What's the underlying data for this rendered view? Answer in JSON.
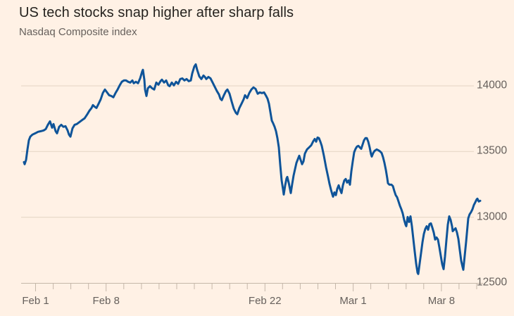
{
  "header": {
    "title": "US tech stocks snap higher after sharp falls",
    "subtitle": "Nasdaq Composite index"
  },
  "colors": {
    "background": "#FFF1E5",
    "line": "#0F5499",
    "grid": "#E3D4C4",
    "axis": "#C4B7A9",
    "text_dark": "#26231F",
    "text_muted": "#66605C"
  },
  "chart_data": {
    "type": "line",
    "title": "US tech stocks snap higher after sharp falls",
    "subtitle": "Nasdaq Composite index",
    "legend": "none",
    "grid": "horizontal gridlines only",
    "ylim": [
      12450,
      14220
    ],
    "y_ticks": [
      14000,
      13500,
      13000,
      12500
    ],
    "y_axis_side": "right",
    "x_tick_labels": [
      "Feb 1",
      "Feb 8",
      "Feb 22",
      "Mar 1",
      "Mar 8"
    ],
    "series": [
      {
        "name": "Nasdaq Composite index",
        "points": [
          [
            34,
            13420
          ],
          [
            35,
            13404
          ],
          [
            37,
            13436
          ],
          [
            39,
            13516
          ],
          [
            41,
            13586
          ],
          [
            43,
            13613
          ],
          [
            46,
            13629
          ],
          [
            50,
            13639
          ],
          [
            54,
            13650
          ],
          [
            58,
            13655
          ],
          [
            62,
            13661
          ],
          [
            65,
            13671
          ],
          [
            68,
            13704
          ],
          [
            71,
            13730
          ],
          [
            74,
            13682
          ],
          [
            76,
            13709
          ],
          [
            79,
            13655
          ],
          [
            81,
            13639
          ],
          [
            84,
            13688
          ],
          [
            87,
            13704
          ],
          [
            90,
            13688
          ],
          [
            93,
            13693
          ],
          [
            96,
            13661
          ],
          [
            98,
            13629
          ],
          [
            100,
            13613
          ],
          [
            103,
            13677
          ],
          [
            106,
            13704
          ],
          [
            109,
            13709
          ],
          [
            113,
            13725
          ],
          [
            117,
            13741
          ],
          [
            120,
            13752
          ],
          [
            124,
            13784
          ],
          [
            127,
            13811
          ],
          [
            130,
            13832
          ],
          [
            132,
            13854
          ],
          [
            134,
            13843
          ],
          [
            137,
            13832
          ],
          [
            140,
            13864
          ],
          [
            143,
            13897
          ],
          [
            146,
            13945
          ],
          [
            149,
            13972
          ],
          [
            152,
            13950
          ],
          [
            155,
            13929
          ],
          [
            158,
            13923
          ],
          [
            161,
            13913
          ],
          [
            164,
            13945
          ],
          [
            167,
            13972
          ],
          [
            170,
            14004
          ],
          [
            173,
            14031
          ],
          [
            176,
            14041
          ],
          [
            179,
            14041
          ],
          [
            182,
            14031
          ],
          [
            185,
            14025
          ],
          [
            188,
            14041
          ],
          [
            190,
            14020
          ],
          [
            193,
            14031
          ],
          [
            196,
            14020
          ],
          [
            199,
            14057
          ],
          [
            202,
            14111
          ],
          [
            203,
            14122
          ],
          [
            205,
            14047
          ],
          [
            206,
            13972
          ],
          [
            208,
            13923
          ],
          [
            210,
            13982
          ],
          [
            213,
            13998
          ],
          [
            216,
            13982
          ],
          [
            219,
            13972
          ],
          [
            222,
            14025
          ],
          [
            225,
            14009
          ],
          [
            228,
            14036
          ],
          [
            230,
            14047
          ],
          [
            233,
            14025
          ],
          [
            236,
            14041
          ],
          [
            239,
            14004
          ],
          [
            241,
            13998
          ],
          [
            244,
            14025
          ],
          [
            247,
            14004
          ],
          [
            250,
            14031
          ],
          [
            253,
            14015
          ],
          [
            256,
            14052
          ],
          [
            259,
            14057
          ],
          [
            262,
            14041
          ],
          [
            265,
            14052
          ],
          [
            268,
            14036
          ],
          [
            271,
            14041
          ],
          [
            273,
            14095
          ],
          [
            276,
            14148
          ],
          [
            278,
            14164
          ],
          [
            280,
            14122
          ],
          [
            283,
            14073
          ],
          [
            286,
            14052
          ],
          [
            289,
            14079
          ],
          [
            291,
            14068
          ],
          [
            293,
            14052
          ],
          [
            296,
            14068
          ],
          [
            299,
            14057
          ],
          [
            302,
            14025
          ],
          [
            305,
            13993
          ],
          [
            308,
            13961
          ],
          [
            311,
            13934
          ],
          [
            313,
            13902
          ],
          [
            315,
            13891
          ],
          [
            318,
            13929
          ],
          [
            321,
            13961
          ],
          [
            323,
            13972
          ],
          [
            326,
            13940
          ],
          [
            329,
            13881
          ],
          [
            332,
            13827
          ],
          [
            335,
            13795
          ],
          [
            337,
            13784
          ],
          [
            340,
            13832
          ],
          [
            343,
            13864
          ],
          [
            346,
            13897
          ],
          [
            348,
            13929
          ],
          [
            351,
            13907
          ],
          [
            354,
            13945
          ],
          [
            357,
            13972
          ],
          [
            360,
            13988
          ],
          [
            363,
            13977
          ],
          [
            366,
            13940
          ],
          [
            369,
            13950
          ],
          [
            372,
            13945
          ],
          [
            375,
            13950
          ],
          [
            378,
            13923
          ],
          [
            380,
            13902
          ],
          [
            382,
            13864
          ],
          [
            384,
            13800
          ],
          [
            386,
            13736
          ],
          [
            388,
            13714
          ],
          [
            390,
            13688
          ],
          [
            392,
            13655
          ],
          [
            394,
            13602
          ],
          [
            396,
            13532
          ],
          [
            398,
            13398
          ],
          [
            400,
            13280
          ],
          [
            402,
            13211
          ],
          [
            403,
            13173
          ],
          [
            405,
            13243
          ],
          [
            407,
            13296
          ],
          [
            408,
            13307
          ],
          [
            410,
            13264
          ],
          [
            412,
            13211
          ],
          [
            413,
            13184
          ],
          [
            415,
            13254
          ],
          [
            417,
            13318
          ],
          [
            419,
            13366
          ],
          [
            421,
            13414
          ],
          [
            423,
            13441
          ],
          [
            425,
            13468
          ],
          [
            427,
            13436
          ],
          [
            429,
            13404
          ],
          [
            431,
            13425
          ],
          [
            433,
            13484
          ],
          [
            436,
            13516
          ],
          [
            439,
            13532
          ],
          [
            442,
            13548
          ],
          [
            445,
            13580
          ],
          [
            447,
            13596
          ],
          [
            449,
            13575
          ],
          [
            451,
            13607
          ],
          [
            453,
            13602
          ],
          [
            455,
            13575
          ],
          [
            457,
            13543
          ],
          [
            460,
            13468
          ],
          [
            463,
            13382
          ],
          [
            466,
            13307
          ],
          [
            468,
            13254
          ],
          [
            470,
            13211
          ],
          [
            472,
            13173
          ],
          [
            473,
            13157
          ],
          [
            475,
            13189
          ],
          [
            477,
            13168
          ],
          [
            479,
            13216
          ],
          [
            481,
            13243
          ],
          [
            483,
            13211
          ],
          [
            485,
            13184
          ],
          [
            487,
            13243
          ],
          [
            489,
            13280
          ],
          [
            491,
            13291
          ],
          [
            493,
            13264
          ],
          [
            495,
            13280
          ],
          [
            497,
            13248
          ],
          [
            499,
            13350
          ],
          [
            501,
            13425
          ],
          [
            503,
            13495
          ],
          [
            505,
            13521
          ],
          [
            507,
            13538
          ],
          [
            509,
            13543
          ],
          [
            511,
            13532
          ],
          [
            513,
            13521
          ],
          [
            515,
            13554
          ],
          [
            517,
            13586
          ],
          [
            519,
            13602
          ],
          [
            521,
            13602
          ],
          [
            523,
            13575
          ],
          [
            525,
            13532
          ],
          [
            527,
            13478
          ],
          [
            528,
            13462
          ],
          [
            530,
            13489
          ],
          [
            532,
            13505
          ],
          [
            535,
            13516
          ],
          [
            537,
            13511
          ],
          [
            540,
            13500
          ],
          [
            542,
            13489
          ],
          [
            544,
            13457
          ],
          [
            546,
            13414
          ],
          [
            548,
            13361
          ],
          [
            550,
            13296
          ],
          [
            551,
            13259
          ],
          [
            553,
            13248
          ],
          [
            556,
            13248
          ],
          [
            558,
            13237
          ],
          [
            560,
            13200
          ],
          [
            562,
            13168
          ],
          [
            564,
            13152
          ],
          [
            566,
            13120
          ],
          [
            568,
            13087
          ],
          [
            570,
            13061
          ],
          [
            572,
            13028
          ],
          [
            574,
            12980
          ],
          [
            576,
            12943
          ],
          [
            577,
            12932
          ],
          [
            579,
            13002
          ],
          [
            581,
            12964
          ],
          [
            583,
            13007
          ],
          [
            585,
            12932
          ],
          [
            587,
            12835
          ],
          [
            589,
            12739
          ],
          [
            591,
            12648
          ],
          [
            593,
            12578
          ],
          [
            594,
            12568
          ],
          [
            596,
            12648
          ],
          [
            598,
            12728
          ],
          [
            600,
            12809
          ],
          [
            602,
            12873
          ],
          [
            604,
            12911
          ],
          [
            606,
            12932
          ],
          [
            608,
            12905
          ],
          [
            610,
            12948
          ],
          [
            612,
            12953
          ],
          [
            614,
            12921
          ],
          [
            616,
            12884
          ],
          [
            618,
            12830
          ],
          [
            620,
            12846
          ],
          [
            622,
            12830
          ],
          [
            624,
            12771
          ],
          [
            626,
            12707
          ],
          [
            628,
            12643
          ],
          [
            630,
            12605
          ],
          [
            632,
            12702
          ],
          [
            634,
            12825
          ],
          [
            636,
            12943
          ],
          [
            638,
            13007
          ],
          [
            640,
            12980
          ],
          [
            642,
            12932
          ],
          [
            643,
            12894
          ],
          [
            645,
            12905
          ],
          [
            647,
            12916
          ],
          [
            649,
            12884
          ],
          [
            651,
            12835
          ],
          [
            653,
            12750
          ],
          [
            655,
            12669
          ],
          [
            657,
            12621
          ],
          [
            658,
            12600
          ],
          [
            660,
            12707
          ],
          [
            662,
            12814
          ],
          [
            664,
            12932
          ],
          [
            665,
            12991
          ],
          [
            667,
            13023
          ],
          [
            669,
            13039
          ],
          [
            671,
            13061
          ],
          [
            673,
            13093
          ],
          [
            675,
            13114
          ],
          [
            677,
            13136
          ],
          [
            678,
            13141
          ],
          [
            680,
            13120
          ],
          [
            682,
            13125
          ]
        ]
      }
    ]
  }
}
